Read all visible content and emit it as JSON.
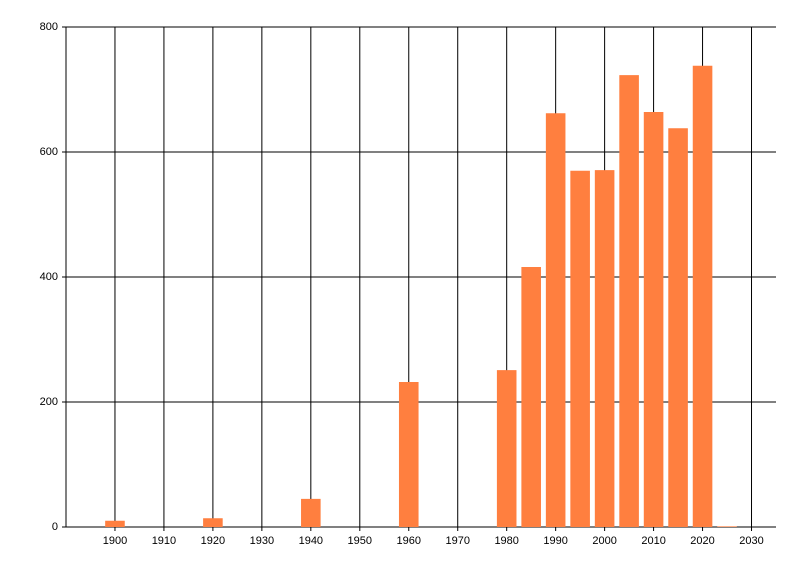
{
  "chart_data": {
    "type": "bar",
    "x": [
      1900,
      1920,
      1940,
      1960,
      1980,
      1985,
      1990,
      1995,
      2000,
      2005,
      2010,
      2015,
      2020,
      2025
    ],
    "values": [
      10,
      14,
      45,
      232,
      251,
      416,
      662,
      570,
      571,
      723,
      664,
      638,
      738,
      1
    ],
    "color": "#ff7f3f",
    "xlim": [
      1890,
      2035
    ],
    "xticks": [
      1900,
      1910,
      1920,
      1930,
      1940,
      1950,
      1960,
      1970,
      1980,
      1990,
      2000,
      2010,
      2020,
      2030
    ],
    "ylim": [
      0,
      800
    ],
    "yticks": [
      0,
      200,
      400,
      600,
      800
    ],
    "grid": true
  }
}
